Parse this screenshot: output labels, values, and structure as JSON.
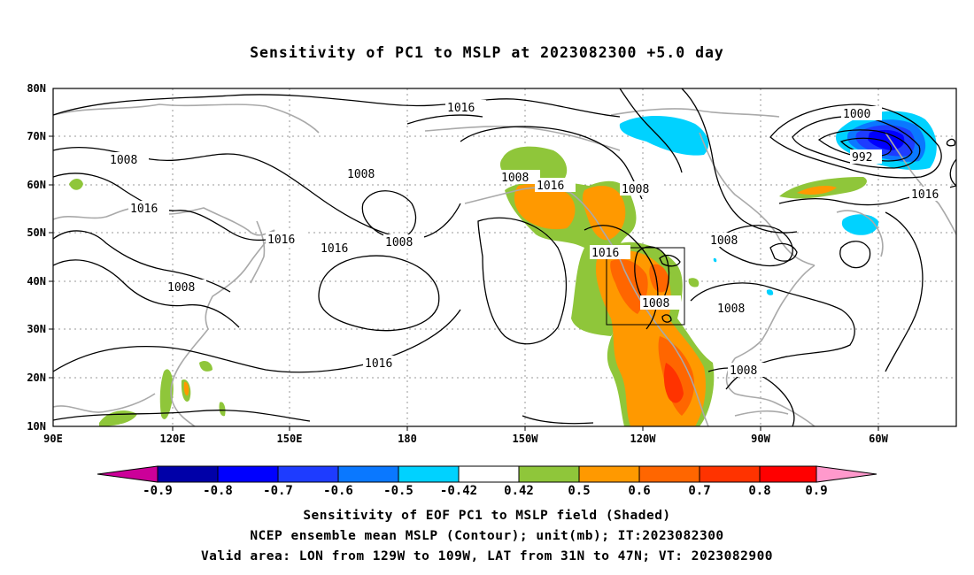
{
  "title": "Sensitivity of PC1 to MSLP at 2023082300 +5.0 day",
  "map": {
    "lon_labels": [
      "90E",
      "120E",
      "150E",
      "180",
      "150W",
      "120W",
      "90W",
      "60W"
    ],
    "lat_labels": [
      "80N",
      "70N",
      "60N",
      "50N",
      "40N",
      "30N",
      "20N",
      "10N"
    ],
    "contour_labels": {
      "l1016a": "1016",
      "l1008a": "1008",
      "l1016b": "1016",
      "l1016c": "1016",
      "l1008b": "1008",
      "l1016d": "1016",
      "l1008c": "1008",
      "l1008d": "1008",
      "l1016e": "1016",
      "l1008e": "1008",
      "l1016f": "1016",
      "l1008f": "1008",
      "l1016g": "1016",
      "l1008g": "1008",
      "l1008h": "1008",
      "l1008i": "1008",
      "l1008j": "1008",
      "l1000": "1000",
      "l992": "992",
      "l1016h": "1016"
    },
    "valid_box": {
      "lon_min": -129,
      "lon_max": -109,
      "lat_min": 31,
      "lat_max": 47
    }
  },
  "colorbar": {
    "labels": [
      "-0.9",
      "-0.8",
      "-0.7",
      "-0.6",
      "-0.5",
      "-0.42",
      "0.42",
      "0.5",
      "0.6",
      "0.7",
      "0.8",
      "0.9"
    ],
    "colors": [
      "#cc0099",
      "#0000a8",
      "#0000ff",
      "#1e3cff",
      "#0a78ff",
      "#00b4ff",
      "#00d2ff",
      "#ffffff",
      "#8fc63a",
      "#ff9900",
      "#ff6600",
      "#ff3300",
      "#ff0000",
      "#ff99cc"
    ]
  },
  "caption": {
    "line1": "Sensitivity of EOF PC1 to MSLP field (Shaded)",
    "line2": "NCEP ensemble mean MSLP (Contour); unit(mb); IT:2023082300",
    "line3": "Valid area: LON from 129W to 109W, LAT from 31N to 47N; VT: 2023082900"
  }
}
